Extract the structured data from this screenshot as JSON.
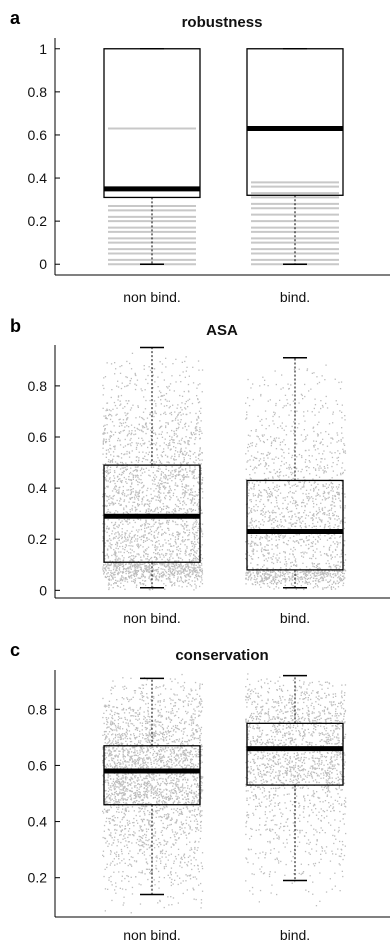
{
  "chart_data": [
    {
      "panel": "a",
      "type": "box",
      "title": "robustness",
      "categories": [
        "non bind.",
        "bind."
      ],
      "ylim": [
        -0.05,
        1.05
      ],
      "yticks": [
        0,
        0.2,
        0.4,
        0.6,
        0.8,
        1
      ],
      "ytick_labels": [
        "0",
        "0.2",
        "0.4",
        "0.6",
        "0.8",
        "1"
      ],
      "boxes": [
        {
          "category": "non bind.",
          "whisker_low": 0.0,
          "q1": 0.31,
          "median": 0.35,
          "q3": 1.0,
          "whisker_high": 1.0
        },
        {
          "category": "bind.",
          "whisker_low": 0.0,
          "q1": 0.32,
          "median": 0.63,
          "q3": 1.0,
          "whisker_high": 1.0
        }
      ],
      "outlier_style": "horizontal-lines",
      "outlier_values": [
        [
          0.0,
          0.02,
          0.05,
          0.07,
          0.1,
          0.12,
          0.15,
          0.17,
          0.2,
          0.22,
          0.25,
          0.27,
          0.63
        ],
        [
          0.0,
          0.02,
          0.05,
          0.07,
          0.1,
          0.12,
          0.15,
          0.17,
          0.2,
          0.23,
          0.26,
          0.28,
          0.31,
          0.33,
          0.36,
          0.38
        ]
      ]
    },
    {
      "panel": "b",
      "type": "box",
      "title": "ASA",
      "categories": [
        "non bind.",
        "bind."
      ],
      "ylim": [
        -0.03,
        0.96
      ],
      "yticks": [
        0,
        0.2,
        0.4,
        0.6,
        0.8
      ],
      "ytick_labels": [
        "0",
        "0.2",
        "0.4",
        "0.6",
        "0.8"
      ],
      "boxes": [
        {
          "category": "non bind.",
          "whisker_low": 0.01,
          "q1": 0.11,
          "median": 0.29,
          "q3": 0.49,
          "whisker_high": 0.95
        },
        {
          "category": "bind.",
          "whisker_low": 0.01,
          "q1": 0.08,
          "median": 0.23,
          "q3": 0.43,
          "whisker_high": 0.91
        }
      ],
      "scatter_points": {
        "non bind.": [
          0.0,
          0.95
        ],
        "bind.": [
          0.0,
          0.91
        ]
      }
    },
    {
      "panel": "c",
      "type": "box",
      "title": "conservation",
      "categories": [
        "non bind.",
        "bind."
      ],
      "ylim": [
        0.06,
        0.94
      ],
      "yticks": [
        0.2,
        0.4,
        0.6,
        0.8
      ],
      "ytick_labels": [
        "0.2",
        "0.4",
        "0.6",
        "0.8"
      ],
      "boxes": [
        {
          "category": "non bind.",
          "whisker_low": 0.14,
          "q1": 0.46,
          "median": 0.58,
          "q3": 0.67,
          "whisker_high": 0.91
        },
        {
          "category": "bind.",
          "whisker_low": 0.19,
          "q1": 0.53,
          "median": 0.66,
          "q3": 0.75,
          "whisker_high": 0.92
        }
      ],
      "scatter_points": {
        "non bind.": [
          0.07,
          0.93
        ],
        "bind.": [
          0.1,
          0.93
        ]
      }
    }
  ],
  "colors": {
    "axis": "#000000",
    "box_edge": "#000000",
    "median": "#000000",
    "scatter": "#bdbdbd",
    "background": "#ffffff"
  }
}
